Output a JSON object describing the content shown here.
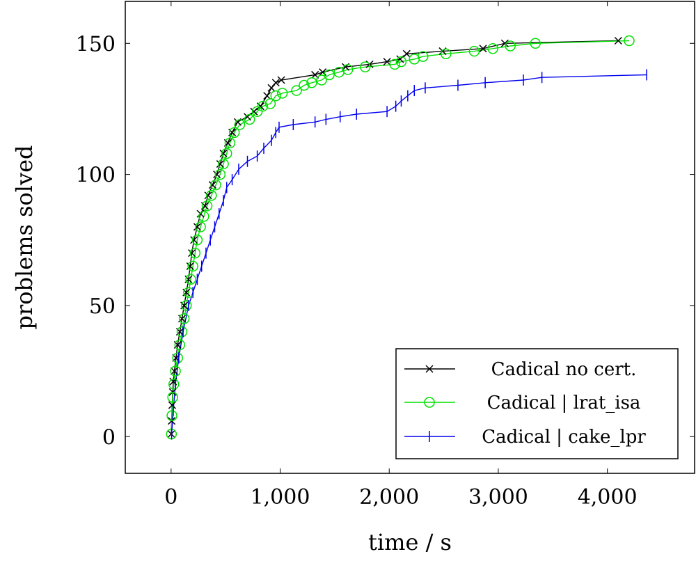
{
  "chart_data": {
    "type": "line",
    "xlabel": "time / s",
    "ylabel": "problems solved",
    "xlim": [
      -420,
      4800
    ],
    "ylim": [
      -14,
      166
    ],
    "xticks": [
      0,
      1000,
      2000,
      3000,
      4000
    ],
    "xtick_labels": [
      "0",
      "1,000",
      "2,000",
      "3,000",
      "4,000"
    ],
    "yticks": [
      0,
      50,
      100,
      150
    ],
    "ytick_labels": [
      "0",
      "50",
      "100",
      "150"
    ],
    "grid": false,
    "legend_position": "bottom-right",
    "series": [
      {
        "name": "Cadical no cert.",
        "color": "#000000",
        "marker": "x",
        "points": [
          [
            2,
            1
          ],
          [
            5,
            6
          ],
          [
            10,
            12
          ],
          [
            15,
            17
          ],
          [
            20,
            21
          ],
          [
            30,
            25
          ],
          [
            45,
            30
          ],
          [
            60,
            35
          ],
          [
            80,
            40
          ],
          [
            100,
            45
          ],
          [
            120,
            50
          ],
          [
            140,
            55
          ],
          [
            160,
            60
          ],
          [
            175,
            65
          ],
          [
            190,
            70
          ],
          [
            210,
            75
          ],
          [
            240,
            80
          ],
          [
            270,
            85
          ],
          [
            310,
            88
          ],
          [
            340,
            92
          ],
          [
            380,
            96
          ],
          [
            420,
            100
          ],
          [
            450,
            104
          ],
          [
            480,
            108
          ],
          [
            520,
            112
          ],
          [
            560,
            116
          ],
          [
            610,
            120
          ],
          [
            700,
            122
          ],
          [
            760,
            124
          ],
          [
            820,
            126
          ],
          [
            880,
            130
          ],
          [
            920,
            133
          ],
          [
            960,
            135
          ],
          [
            1010,
            136
          ],
          [
            1320,
            138
          ],
          [
            1390,
            139
          ],
          [
            1600,
            141
          ],
          [
            1820,
            142
          ],
          [
            1980,
            143
          ],
          [
            2100,
            144
          ],
          [
            2160,
            146
          ],
          [
            2490,
            147
          ],
          [
            2860,
            148
          ],
          [
            3060,
            150
          ],
          [
            4100,
            151
          ]
        ]
      },
      {
        "name": "Cadical | lrat_isa",
        "color": "#00e000",
        "marker": "o",
        "points": [
          [
            3,
            1
          ],
          [
            8,
            8
          ],
          [
            15,
            15
          ],
          [
            25,
            20
          ],
          [
            40,
            25
          ],
          [
            60,
            30
          ],
          [
            80,
            35
          ],
          [
            100,
            40
          ],
          [
            120,
            45
          ],
          [
            140,
            50
          ],
          [
            160,
            55
          ],
          [
            180,
            60
          ],
          [
            200,
            65
          ],
          [
            220,
            70
          ],
          [
            240,
            75
          ],
          [
            270,
            80
          ],
          [
            300,
            84
          ],
          [
            330,
            88
          ],
          [
            370,
            92
          ],
          [
            410,
            96
          ],
          [
            450,
            100
          ],
          [
            480,
            104
          ],
          [
            510,
            108
          ],
          [
            540,
            112
          ],
          [
            580,
            116
          ],
          [
            630,
            119
          ],
          [
            720,
            121
          ],
          [
            790,
            124
          ],
          [
            840,
            126
          ],
          [
            910,
            127
          ],
          [
            960,
            130
          ],
          [
            1020,
            131
          ],
          [
            1150,
            132
          ],
          [
            1220,
            134
          ],
          [
            1290,
            135
          ],
          [
            1380,
            136
          ],
          [
            1450,
            138
          ],
          [
            1540,
            139
          ],
          [
            1620,
            140
          ],
          [
            1780,
            141
          ],
          [
            2050,
            142
          ],
          [
            2110,
            143
          ],
          [
            2230,
            144
          ],
          [
            2310,
            145
          ],
          [
            2520,
            146
          ],
          [
            2780,
            147
          ],
          [
            2950,
            148
          ],
          [
            3110,
            149
          ],
          [
            3340,
            150
          ],
          [
            4200,
            151
          ]
        ]
      },
      {
        "name": "Cadical | cake_lpr",
        "color": "#0000ee",
        "marker": "|",
        "points": [
          [
            5,
            1
          ],
          [
            20,
            10
          ],
          [
            40,
            20
          ],
          [
            70,
            30
          ],
          [
            110,
            40
          ],
          [
            160,
            50
          ],
          [
            200,
            55
          ],
          [
            240,
            60
          ],
          [
            280,
            65
          ],
          [
            320,
            70
          ],
          [
            360,
            75
          ],
          [
            400,
            80
          ],
          [
            440,
            85
          ],
          [
            480,
            90
          ],
          [
            510,
            95
          ],
          [
            560,
            98
          ],
          [
            620,
            102
          ],
          [
            700,
            105
          ],
          [
            790,
            107
          ],
          [
            850,
            110
          ],
          [
            920,
            113
          ],
          [
            960,
            116
          ],
          [
            990,
            118
          ],
          [
            1120,
            119
          ],
          [
            1320,
            120
          ],
          [
            1420,
            121
          ],
          [
            1550,
            122
          ],
          [
            1700,
            123
          ],
          [
            1980,
            124
          ],
          [
            2060,
            126
          ],
          [
            2110,
            128
          ],
          [
            2170,
            130
          ],
          [
            2230,
            132
          ],
          [
            2330,
            133
          ],
          [
            2630,
            134
          ],
          [
            2880,
            135
          ],
          [
            3230,
            136
          ],
          [
            3400,
            137
          ],
          [
            4360,
            138
          ]
        ]
      }
    ]
  }
}
